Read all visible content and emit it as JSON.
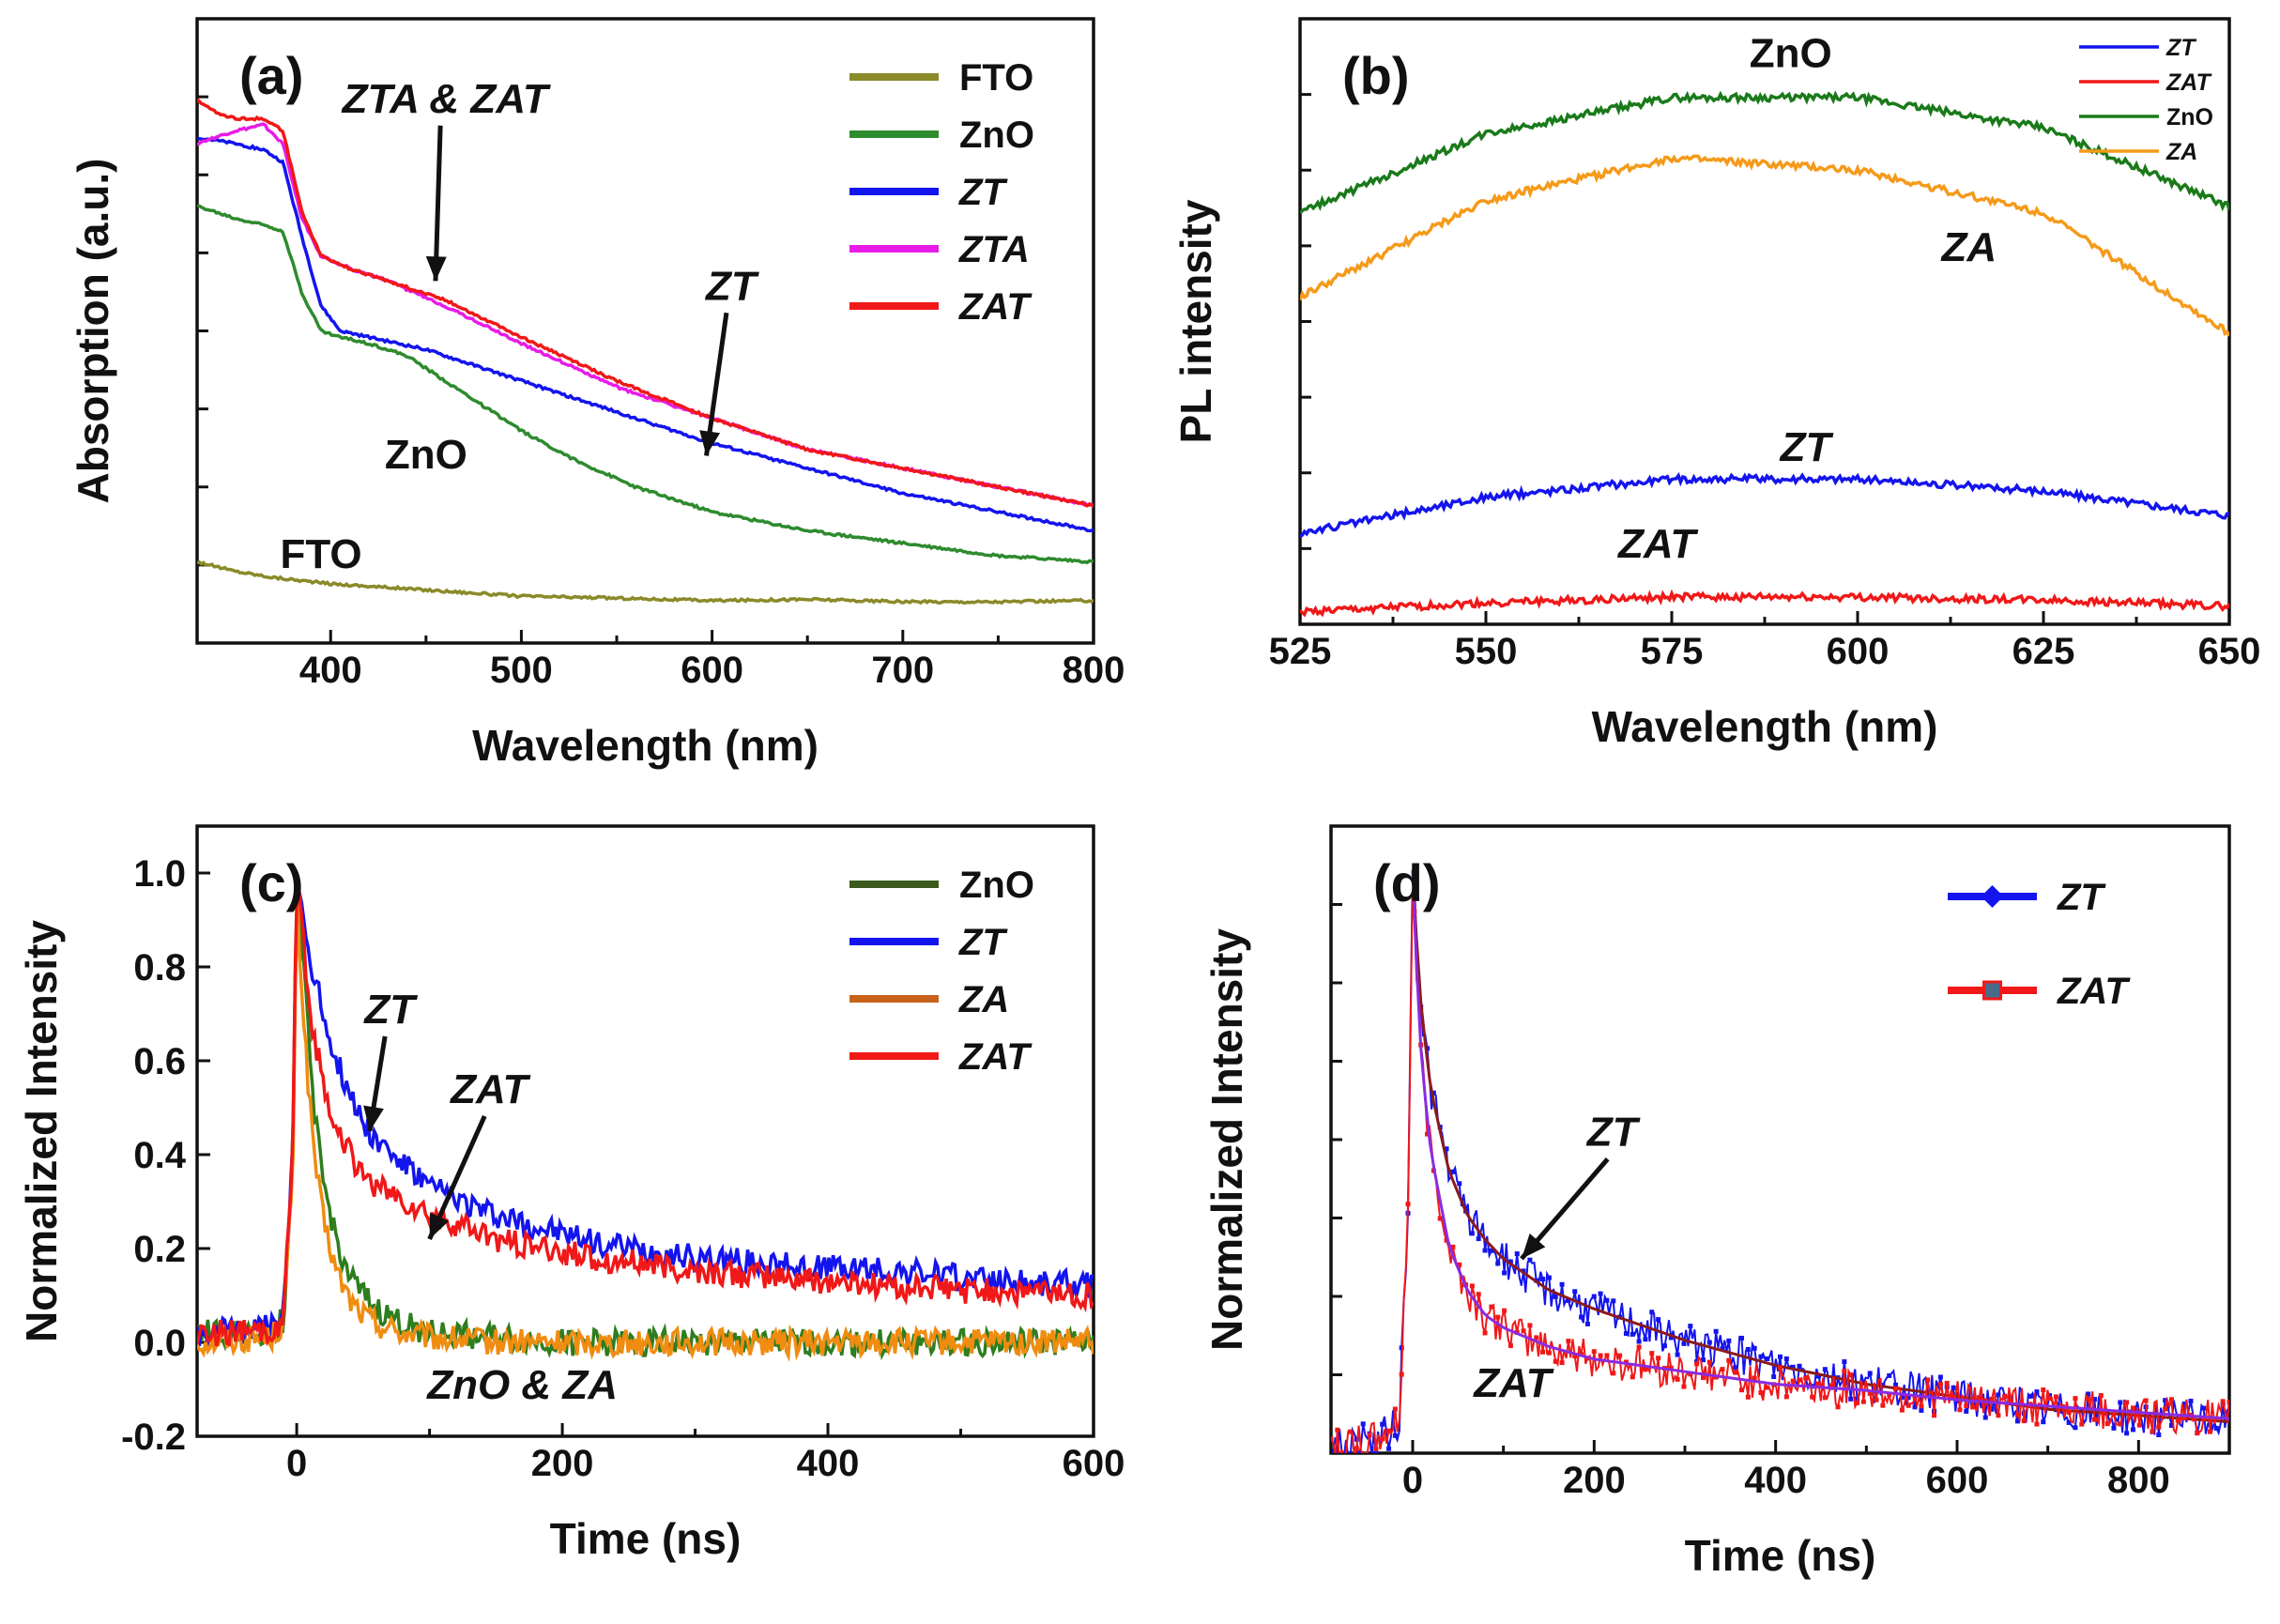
{
  "chart_data": [
    {
      "id": "a",
      "type": "line",
      "panel_label": "(a)",
      "xlabel": "Wavelength (nm)",
      "ylabel": "Absorption (a.u.)",
      "xlim": [
        330,
        800
      ],
      "ylim": [
        0,
        1
      ],
      "xticks": [
        400,
        500,
        600,
        700,
        800
      ],
      "show_y_tick_labels": false,
      "legend_position": "top-right",
      "series": [
        {
          "name": "FTO",
          "italic": false,
          "color": "#8a8a2a",
          "x": [
            330,
            350,
            370,
            400,
            450,
            500,
            550,
            600,
            650,
            700,
            750,
            800
          ],
          "y": [
            0.13,
            0.115,
            0.105,
            0.095,
            0.085,
            0.075,
            0.072,
            0.068,
            0.07,
            0.066,
            0.066,
            0.068
          ]
        },
        {
          "name": "ZnO",
          "italic": false,
          "color": "#2e8b2e",
          "x": [
            330,
            350,
            365,
            375,
            385,
            395,
            405,
            420,
            440,
            460,
            480,
            500,
            530,
            560,
            600,
            650,
            700,
            750,
            800
          ],
          "y": [
            0.7,
            0.68,
            0.67,
            0.66,
            0.56,
            0.5,
            0.49,
            0.48,
            0.46,
            0.42,
            0.38,
            0.34,
            0.29,
            0.25,
            0.21,
            0.18,
            0.16,
            0.14,
            0.13
          ]
        },
        {
          "name": "ZT",
          "italic": true,
          "color": "#1414ee",
          "x": [
            330,
            350,
            365,
            375,
            385,
            395,
            405,
            420,
            450,
            500,
            550,
            600,
            650,
            700,
            750,
            800
          ],
          "y": [
            0.81,
            0.8,
            0.79,
            0.77,
            0.65,
            0.54,
            0.5,
            0.49,
            0.47,
            0.42,
            0.37,
            0.32,
            0.28,
            0.24,
            0.21,
            0.18
          ]
        },
        {
          "name": "ZTA",
          "italic": true,
          "color": "#e81ce8",
          "x": [
            330,
            350,
            365,
            375,
            385,
            395,
            410,
            430,
            460,
            500,
            550,
            600,
            650,
            700,
            750,
            800
          ],
          "y": [
            0.8,
            0.82,
            0.83,
            0.8,
            0.68,
            0.62,
            0.6,
            0.58,
            0.54,
            0.48,
            0.41,
            0.36,
            0.31,
            0.28,
            0.25,
            0.22
          ]
        },
        {
          "name": "ZAT",
          "italic": true,
          "color": "#f01818",
          "x": [
            330,
            340,
            350,
            365,
            375,
            385,
            395,
            410,
            430,
            460,
            500,
            550,
            600,
            650,
            700,
            750,
            800
          ],
          "y": [
            0.87,
            0.85,
            0.84,
            0.84,
            0.82,
            0.69,
            0.62,
            0.6,
            0.58,
            0.55,
            0.49,
            0.42,
            0.36,
            0.31,
            0.28,
            0.25,
            0.22
          ]
        }
      ],
      "annotations": [
        {
          "text": "ZTA & ZAT",
          "italic": true,
          "x": 460,
          "y": 0.85,
          "arrow_to": [
            455,
            0.58
          ]
        },
        {
          "text": "ZT",
          "italic": true,
          "x": 610,
          "y": 0.55,
          "arrow_to": [
            597,
            0.3
          ]
        },
        {
          "text": "ZnO",
          "italic": false,
          "x": 450,
          "y": 0.28
        },
        {
          "text": "FTO",
          "italic": false,
          "x": 395,
          "y": 0.12
        }
      ]
    },
    {
      "id": "b",
      "type": "line",
      "panel_label": "(b)",
      "xlabel": "Wavelength (nm)",
      "ylabel": "PL intensity",
      "xlim": [
        525,
        650
      ],
      "ylim": [
        0,
        1
      ],
      "xticks": [
        525,
        550,
        575,
        600,
        625,
        650
      ],
      "show_y_tick_labels": false,
      "legend_position": "top-right",
      "series": [
        {
          "name": "ZT",
          "italic": true,
          "color": "#1414ee",
          "x": [
            525,
            550,
            575,
            600,
            625,
            650
          ],
          "y": [
            0.15,
            0.21,
            0.24,
            0.24,
            0.22,
            0.18
          ]
        },
        {
          "name": "ZAT",
          "italic": true,
          "color": "#f01818",
          "x": [
            525,
            550,
            575,
            600,
            625,
            650
          ],
          "y": [
            0.02,
            0.035,
            0.045,
            0.045,
            0.04,
            0.03
          ]
        },
        {
          "name": "ZnO",
          "italic": false,
          "color": "#1a7a1a",
          "x": [
            525,
            550,
            575,
            600,
            625,
            650
          ],
          "y": [
            0.68,
            0.81,
            0.87,
            0.87,
            0.82,
            0.69
          ]
        },
        {
          "name": "ZA",
          "italic": true,
          "color": "#f59a1a",
          "x": [
            525,
            550,
            575,
            600,
            625,
            650
          ],
          "y": [
            0.54,
            0.7,
            0.77,
            0.75,
            0.68,
            0.48
          ]
        }
      ],
      "annotations": [
        {
          "text": "ZnO",
          "italic": false,
          "x": 591,
          "y": 0.92
        },
        {
          "text": "ZA",
          "italic": true,
          "x": 615,
          "y": 0.6
        },
        {
          "text": "ZT",
          "italic": true,
          "x": 593,
          "y": 0.27
        },
        {
          "text": "ZAT",
          "italic": true,
          "x": 573,
          "y": 0.11
        }
      ]
    },
    {
      "id": "c",
      "type": "line",
      "panel_label": "(c)",
      "xlabel": "Time (ns)",
      "ylabel": "Normalized Intensity",
      "xlim": [
        -75,
        600
      ],
      "ylim": [
        -0.2,
        1.1
      ],
      "xticks": [
        0,
        200,
        400,
        600
      ],
      "yticks": [
        -0.2,
        0.0,
        0.2,
        0.4,
        0.6,
        0.8,
        1.0
      ],
      "ytick_labels": [
        "-0.2",
        "0.0",
        "0.2",
        "0.4",
        "0.6",
        "0.8",
        "1.0"
      ],
      "show_y_tick_labels": true,
      "legend_position": "top-right",
      "series": [
        {
          "name": "ZnO",
          "italic": false,
          "color": "#2e7d1e",
          "legend_color": "#3a5a1e",
          "x": [
            -75,
            -20,
            -10,
            -3,
            0,
            5,
            10,
            15,
            20,
            30,
            40,
            50,
            60,
            80,
            100,
            150,
            200,
            300,
            400,
            500,
            600
          ],
          "y": [
            0.02,
            0.02,
            0.05,
            0.4,
            1.0,
            0.8,
            0.6,
            0.45,
            0.34,
            0.22,
            0.14,
            0.1,
            0.07,
            0.04,
            0.02,
            0.01,
            0.0,
            0.0,
            0.0,
            0.0,
            0.0
          ]
        },
        {
          "name": "ZT",
          "italic": true,
          "color": "#1414ee",
          "x": [
            -75,
            -20,
            -10,
            -3,
            0,
            5,
            10,
            20,
            30,
            40,
            50,
            60,
            80,
            100,
            150,
            200,
            250,
            300,
            350,
            400,
            450,
            500,
            550,
            600
          ],
          "y": [
            0.02,
            0.03,
            0.05,
            0.4,
            1.0,
            0.9,
            0.82,
            0.7,
            0.6,
            0.53,
            0.47,
            0.43,
            0.38,
            0.33,
            0.27,
            0.23,
            0.2,
            0.18,
            0.17,
            0.16,
            0.15,
            0.14,
            0.13,
            0.12
          ]
        },
        {
          "name": "ZA",
          "italic": true,
          "color": "#f08c10",
          "legend_color": "#c8621a",
          "x": [
            -75,
            -20,
            -10,
            -3,
            0,
            5,
            10,
            15,
            20,
            30,
            40,
            50,
            60,
            80,
            100,
            150,
            200,
            300,
            400,
            500,
            600
          ],
          "y": [
            0.0,
            0.01,
            0.04,
            0.35,
            0.95,
            0.7,
            0.5,
            0.36,
            0.26,
            0.15,
            0.09,
            0.06,
            0.04,
            0.02,
            0.01,
            0.0,
            0.0,
            0.0,
            0.0,
            0.0,
            0.0
          ]
        },
        {
          "name": "ZAT",
          "italic": true,
          "color": "#f01818",
          "x": [
            -75,
            -20,
            -10,
            -3,
            0,
            5,
            10,
            20,
            30,
            40,
            50,
            60,
            80,
            100,
            150,
            200,
            250,
            300,
            350,
            400,
            450,
            500,
            550,
            600
          ],
          "y": [
            0.02,
            0.02,
            0.05,
            0.4,
            1.0,
            0.85,
            0.7,
            0.55,
            0.46,
            0.4,
            0.36,
            0.33,
            0.3,
            0.27,
            0.22,
            0.19,
            0.17,
            0.15,
            0.14,
            0.13,
            0.12,
            0.11,
            0.11,
            0.1
          ]
        }
      ],
      "annotations": [
        {
          "text": "ZT",
          "italic": true,
          "x": 70,
          "y": 0.68,
          "arrow_to": [
            55,
            0.45
          ]
        },
        {
          "text": "ZAT",
          "italic": true,
          "x": 145,
          "y": 0.51,
          "arrow_to": [
            100,
            0.22
          ]
        },
        {
          "text": "ZnO & ZA",
          "italic": true,
          "x": 170,
          "y": -0.12
        }
      ]
    },
    {
      "id": "d",
      "type": "scatter",
      "panel_label": "(d)",
      "xlabel": "Time (ns)",
      "ylabel": "Normalized Intensity",
      "xlim": [
        -90,
        900
      ],
      "ylim": [
        0,
        1
      ],
      "xticks": [
        0,
        200,
        400,
        600,
        800
      ],
      "show_y_tick_labels": false,
      "legend_position": "top-right",
      "series": [
        {
          "name": "ZT",
          "italic": true,
          "color": "#1414ee",
          "marker": "diamond",
          "fit_color": "#8b1a1a",
          "x": [
            -90,
            -40,
            -15,
            -5,
            0,
            5,
            10,
            20,
            40,
            60,
            80,
            100,
            150,
            200,
            300,
            400,
            500,
            600,
            700,
            800,
            900
          ],
          "y": [
            0.01,
            0.02,
            0.05,
            0.4,
            0.93,
            0.8,
            0.7,
            0.58,
            0.45,
            0.38,
            0.34,
            0.31,
            0.26,
            0.23,
            0.18,
            0.14,
            0.11,
            0.09,
            0.07,
            0.06,
            0.05
          ]
        },
        {
          "name": "ZAT",
          "italic": true,
          "color": "#f01818",
          "marker": "square",
          "fit_color": "#8a2be2",
          "x": [
            -90,
            -40,
            -15,
            -5,
            0,
            5,
            10,
            20,
            40,
            60,
            80,
            100,
            150,
            200,
            300,
            400,
            500,
            600,
            700,
            800,
            900
          ],
          "y": [
            0.01,
            0.02,
            0.05,
            0.4,
            0.93,
            0.75,
            0.62,
            0.48,
            0.33,
            0.26,
            0.22,
            0.2,
            0.17,
            0.15,
            0.13,
            0.11,
            0.1,
            0.085,
            0.075,
            0.065,
            0.055
          ]
        }
      ],
      "annotations": [
        {
          "text": "ZT",
          "italic": true,
          "x": 220,
          "y": 0.49,
          "arrow_to": [
            120,
            0.31
          ]
        },
        {
          "text": "ZAT",
          "italic": true,
          "x": 110,
          "y": 0.09
        }
      ]
    }
  ]
}
